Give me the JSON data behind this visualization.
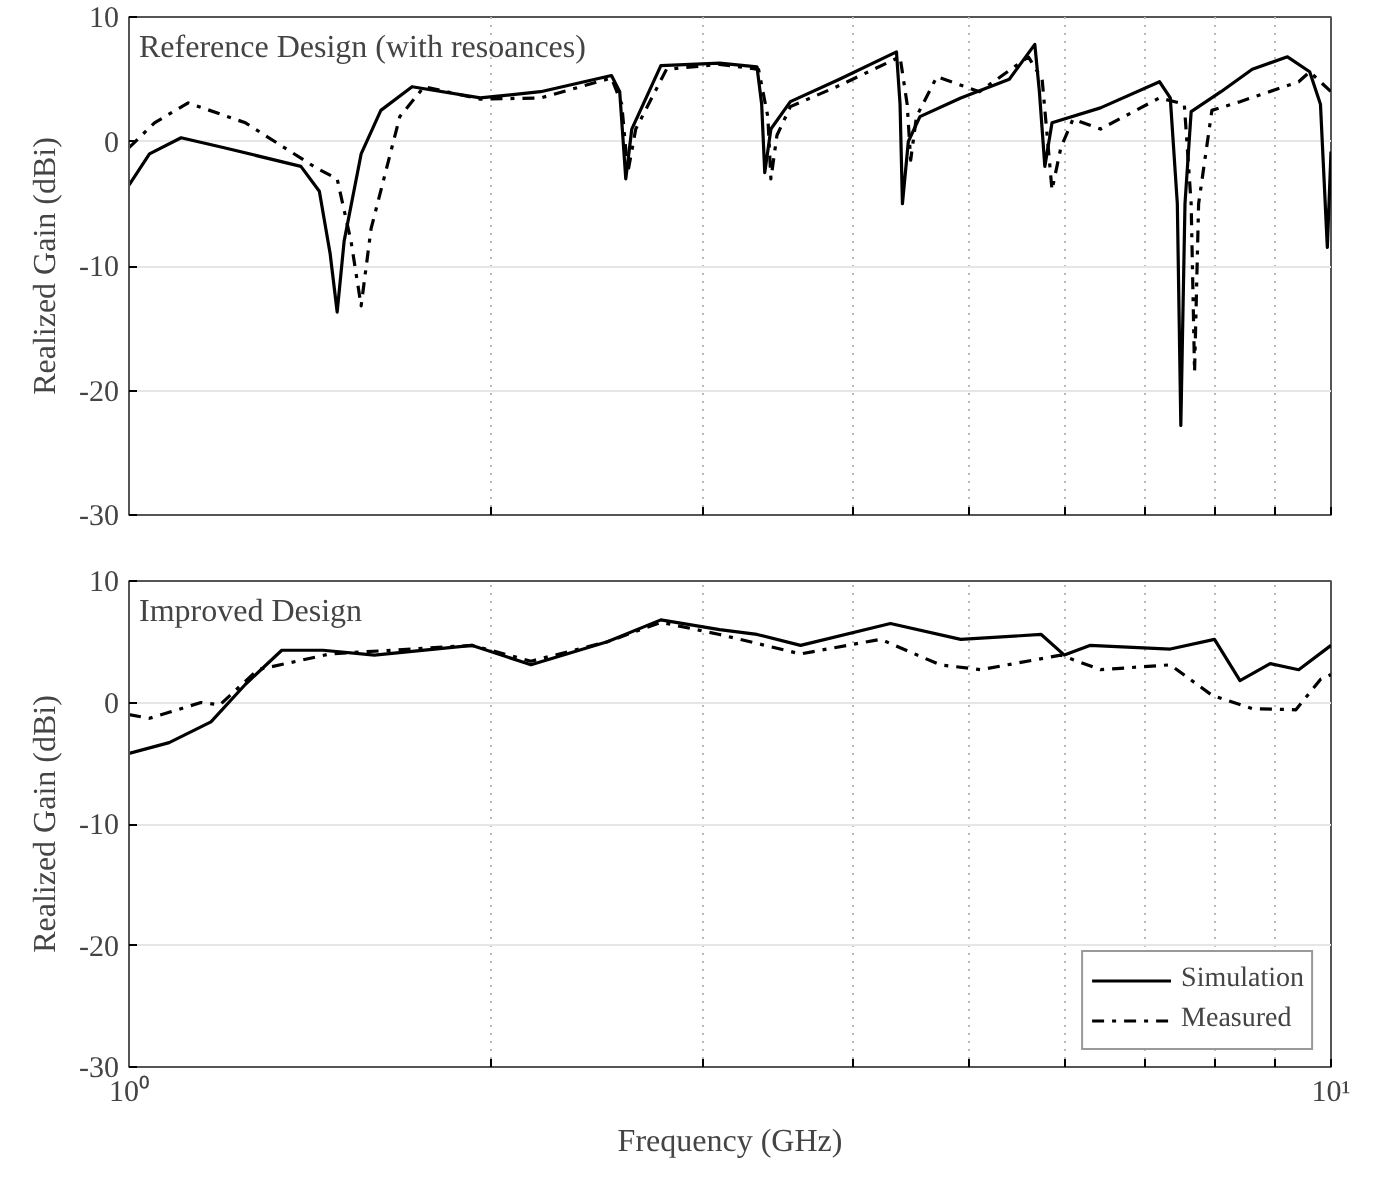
{
  "chart_data": [
    {
      "type": "line",
      "annotations": [
        "Reference Design (with resoances)"
      ],
      "ylabel": "Realized Gain (dBi)",
      "log": "x",
      "xlim": [
        1,
        10
      ],
      "ylim": [
        -30,
        10
      ],
      "xticks": [
        {
          "value": 1,
          "label": null
        },
        {
          "value": 2,
          "label": null
        },
        {
          "value": 3,
          "label": null
        },
        {
          "value": 4,
          "label": null
        },
        {
          "value": 5,
          "label": null
        },
        {
          "value": 6,
          "label": null
        },
        {
          "value": 7,
          "label": null
        },
        {
          "value": 8,
          "label": null
        },
        {
          "value": 9,
          "label": null
        },
        {
          "value": 10,
          "label": null
        }
      ],
      "yticks": [
        -30,
        -20,
        -10,
        0,
        10
      ],
      "tick_labels": "y",
      "grid": true,
      "legend": false,
      "series": [
        {
          "color": "#000000",
          "line_style": "solid",
          "x": [
            1,
            1.04,
            1.105,
            1.2,
            1.39,
            1.44,
            1.47,
            1.49,
            1.51,
            1.56,
            1.62,
            1.72,
            1.96,
            2.2,
            2.52,
            2.56,
            2.59,
            2.62,
            2.77,
            3.1,
            3.33,
            3.36,
            3.38,
            3.42,
            3.55,
            3.9,
            4.35,
            4.38,
            4.4,
            4.45,
            4.55,
            4.92,
            5.4,
            5.67,
            5.72,
            5.78,
            5.86,
            6.43,
            7.2,
            7.35,
            7.45,
            7.5,
            7.56,
            7.65,
            8.1,
            8.6,
            9.2,
            9.6,
            9.8,
            9.93,
            10
          ],
          "values": [
            -3.5,
            -1,
            0.3,
            -0.5,
            -2,
            -4,
            -9,
            -13.7,
            -8,
            -1,
            2.5,
            4.4,
            3.5,
            4,
            5.3,
            4,
            -3,
            1,
            6.1,
            6.3,
            6,
            3,
            -2.5,
            1,
            3.2,
            5,
            7.2,
            3,
            -5,
            0,
            2,
            3.5,
            5,
            7.8,
            4,
            -2,
            1.5,
            2.7,
            4.8,
            3.5,
            -5,
            -22.8,
            -5,
            2.4,
            4,
            5.8,
            6.8,
            5.6,
            3,
            -8.5,
            -0.8
          ]
        },
        {
          "color": "#000000",
          "line_style": "dashdot",
          "x": [
            1,
            1.05,
            1.12,
            1.25,
            1.43,
            1.49,
            1.53,
            1.56,
            1.59,
            1.68,
            1.76,
            1.96,
            2.2,
            2.52,
            2.57,
            2.6,
            2.64,
            2.8,
            3.1,
            3.34,
            3.4,
            3.42,
            3.46,
            3.55,
            3.9,
            4.38,
            4.44,
            4.47,
            4.52,
            4.7,
            5.1,
            5.6,
            5.75,
            5.86,
            5.96,
            6.1,
            6.43,
            7.2,
            7.55,
            7.65,
            7.7,
            7.76,
            7.96,
            8.4,
            9.4,
            9.6,
            10
          ],
          "values": [
            -0.5,
            1.5,
            3.1,
            1.5,
            -2.1,
            -3,
            -8,
            -13.2,
            -7,
            2,
            4.4,
            3.4,
            3.5,
            5.1,
            3,
            -2.5,
            1,
            5.8,
            6.2,
            5.8,
            2,
            -3,
            0.5,
            2.8,
            4.5,
            6.8,
            3,
            -1.5,
            2,
            5.2,
            4,
            6.8,
            5,
            -3.9,
            -0.5,
            1.8,
            1,
            3.5,
            3,
            -5,
            -18.5,
            -5,
            2.5,
            3.2,
            4.8,
            5.6,
            4
          ]
        }
      ]
    },
    {
      "type": "line",
      "annotations": [
        "Improved Design"
      ],
      "xlabel": "Frequency (GHz)",
      "ylabel": "Realized Gain (dBi)",
      "log": "x",
      "xlim": [
        1,
        10
      ],
      "ylim": [
        -30,
        10
      ],
      "xticks": [
        {
          "value": 1,
          "label": "10⁰"
        },
        {
          "value": 2,
          "label": null
        },
        {
          "value": 3,
          "label": null
        },
        {
          "value": 4,
          "label": null
        },
        {
          "value": 5,
          "label": null
        },
        {
          "value": 6,
          "label": null
        },
        {
          "value": 7,
          "label": null
        },
        {
          "value": 8,
          "label": null
        },
        {
          "value": 9,
          "label": null
        },
        {
          "value": 10,
          "label": "10¹"
        }
      ],
      "yticks": [
        -30,
        -20,
        -10,
        0,
        10
      ],
      "grid": true,
      "legend": "bottom right",
      "series": [
        {
          "name": "Simulation",
          "color": "#000000",
          "line_style": "solid",
          "x": [
            1,
            1.08,
            1.17,
            1.25,
            1.34,
            1.45,
            1.6,
            1.93,
            2.16,
            2.5,
            2.77,
            3.1,
            3.33,
            3.62,
            4.3,
            4.92,
            5.74,
            6.0,
            6.3,
            7.35,
            8.0,
            8.4,
            8.9,
            9.4,
            10
          ],
          "values": [
            -4.2,
            -3.3,
            -1.6,
            1.5,
            4.3,
            4.3,
            3.9,
            4.7,
            3.1,
            5,
            6.8,
            6,
            5.6,
            4.7,
            6.5,
            5.2,
            5.6,
            3.9,
            4.7,
            4.4,
            5.2,
            1.8,
            3.2,
            2.7,
            4.7
          ]
        },
        {
          "name": "Measured",
          "color": "#000000",
          "line_style": "dashdot",
          "x": [
            1,
            1.04,
            1.148,
            1.19,
            1.28,
            1.47,
            1.93,
            2.16,
            2.5,
            2.77,
            3.1,
            3.62,
            4.22,
            4.73,
            5.11,
            5.96,
            6.43,
            7.35,
            7.96,
            8.6,
            9.35,
            9.8,
            10
          ],
          "values": [
            -1,
            -1.3,
            0,
            -0.2,
            2.7,
            4,
            4.7,
            3.4,
            5,
            6.6,
            5.6,
            4,
            5.2,
            3.1,
            2.7,
            3.9,
            2.7,
            3.1,
            0.6,
            -0.5,
            -0.6,
            1.9,
            2.3
          ]
        }
      ]
    }
  ]
}
